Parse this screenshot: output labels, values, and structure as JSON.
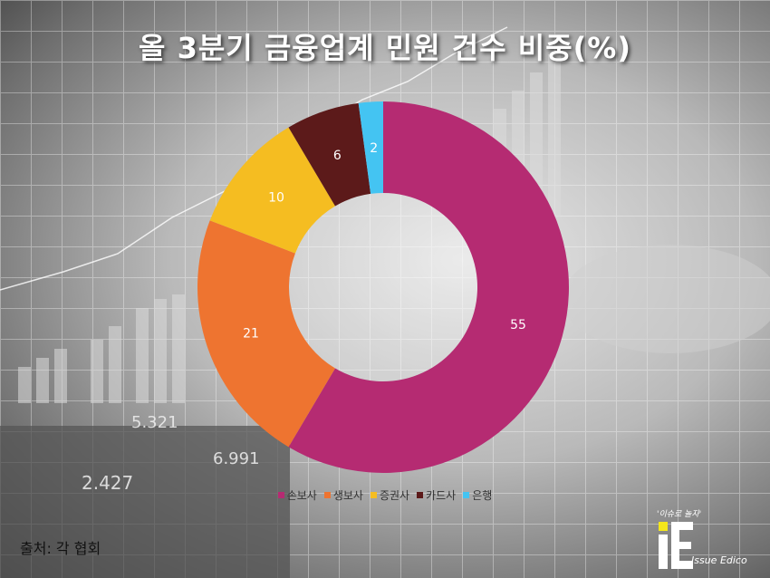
{
  "title": "올 3분기 금융업계 민원 건수 비중(%)",
  "source": "출처: 각 협회",
  "logo": {
    "tagline": "'이슈로 놀자'",
    "name": "Issue Edico",
    "mark": "iE"
  },
  "colors": {
    "손보사": "#b52b72",
    "생보사": "#ee7430",
    "증권사": "#f5bd21",
    "카드사": "#5c1a1a",
    "은행": "#44c4f2"
  },
  "chart_data": {
    "type": "pie",
    "title": "올 3분기 금융업계 민원 건수 비중(%)",
    "categories": [
      "손보사",
      "생보사",
      "증권사",
      "카드사",
      "은행"
    ],
    "values": [
      55,
      21,
      10,
      6,
      2
    ],
    "legend": "bottom",
    "donut": true
  }
}
